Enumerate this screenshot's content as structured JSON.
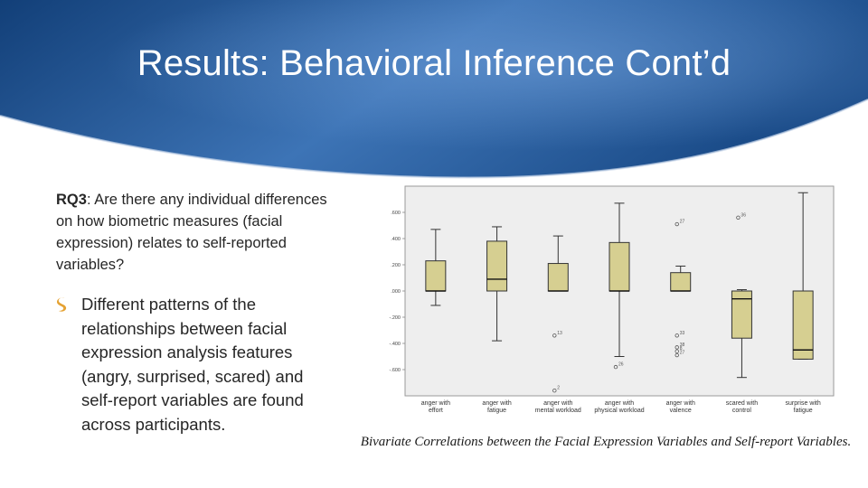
{
  "slide": {
    "title": "Results: Behavioral Inference Cont’d",
    "rq_label": "RQ3",
    "rq_text": ": Are there any individual differences on how biometric measures (facial expression) relates to self-reported variables?",
    "bullet_text": "Different patterns of the relationships between facial expression analysis features (angry, surprised, scared) and self-report variables are found across participants.",
    "caption": "Bivariate Correlations between the Facial Expression Variables and Self-report Variables."
  },
  "colors": {
    "header_dark": "#14427a",
    "header_light": "#4f86c6",
    "box_fill": "#d6cf91",
    "plot_bg": "#eeeeee",
    "bullet_icon": "#e5a233"
  },
  "icons": {
    "bullet": "leaf-s-icon"
  },
  "chart_data": {
    "type": "boxplot",
    "title": "",
    "xlabel": "",
    "ylabel": "",
    "ylim": [
      -0.8,
      0.8
    ],
    "yticks": [
      ".600",
      ".400",
      ".200",
      ".000",
      "-.200",
      "-.400",
      "-.600"
    ],
    "categories": [
      [
        "anger with",
        "effort"
      ],
      [
        "anger with",
        "fatigue"
      ],
      [
        "anger with",
        "mental workload"
      ],
      [
        "anger with",
        "physical workload"
      ],
      [
        "anger with",
        "valence"
      ],
      [
        "scared with",
        "control"
      ],
      [
        "surprise with",
        "fatigue"
      ]
    ],
    "boxes": [
      {
        "min": -0.11,
        "q1": 0.0,
        "median": 0.0,
        "q3": 0.23,
        "max": 0.47,
        "outliers": []
      },
      {
        "min": -0.38,
        "q1": 0.0,
        "median": 0.09,
        "q3": 0.38,
        "max": 0.49,
        "outliers": []
      },
      {
        "min": 0.0,
        "q1": 0.0,
        "median": 0.0,
        "q3": 0.21,
        "max": 0.42,
        "outliers": [
          {
            "y": -0.34,
            "label": "13"
          },
          {
            "y": -0.76,
            "label": "2"
          }
        ]
      },
      {
        "min": -0.5,
        "q1": 0.0,
        "median": 0.0,
        "q3": 0.37,
        "max": 0.67,
        "outliers": [
          {
            "y": -0.58,
            "label": "26"
          }
        ]
      },
      {
        "min": 0.0,
        "q1": 0.0,
        "median": 0.0,
        "q3": 0.14,
        "max": 0.19,
        "outliers": [
          {
            "y": 0.51,
            "label": "27"
          },
          {
            "y": -0.34,
            "label": "33"
          },
          {
            "y": -0.43,
            "label": "38"
          },
          {
            "y": -0.46,
            "label": "8"
          },
          {
            "y": -0.49,
            "label": "27"
          }
        ]
      },
      {
        "min": -0.66,
        "q1": -0.36,
        "median": -0.06,
        "q3": 0.0,
        "max": 0.01,
        "outliers": [
          {
            "y": 0.56,
            "label": "36"
          }
        ]
      },
      {
        "min": -0.52,
        "q1": -0.52,
        "median": -0.45,
        "q3": 0.0,
        "max": 0.75,
        "outliers": []
      }
    ]
  }
}
